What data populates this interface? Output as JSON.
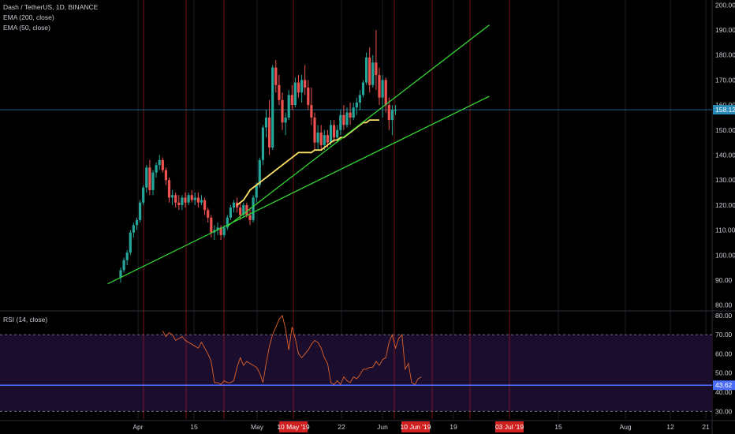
{
  "header": {
    "symbol_line": "Dash / TetherUS, 1D, BINANCE",
    "indicators": [
      "EMA (200, close)",
      "EMA (50, close)"
    ]
  },
  "rsi_pane": {
    "label": "RSI (14, close)"
  },
  "colors": {
    "background": "#000000",
    "up_candle": "#26a69a",
    "down_candle": "#ef5350",
    "trendline": "#35d335",
    "ema50": "#ffe066",
    "vertical_markers": "#b02020",
    "price_line": "#2a8bb8",
    "rsi_line": "#e0632a",
    "rsi_band_fill": "#1a0d2e",
    "rsi_highlight_line": "#4a6cf7"
  },
  "chart_data": [
    {
      "type": "candlestick",
      "title": "Dash / TetherUS, 1D, BINANCE",
      "x_tick_labels": [
        "Apr",
        "15",
        "May",
        "22",
        "Jun",
        "19",
        "15",
        "Aug",
        "12",
        "21"
      ],
      "highlighted_dates": [
        "10 May '19",
        "10 Jun '19",
        "03 Jul '19"
      ],
      "y_ticks": [
        "200.00",
        "190.00",
        "180.00",
        "170.00",
        "160.00",
        "150.00",
        "140.00",
        "130.00",
        "120.00",
        "110.00",
        "100.00",
        "90.00",
        "80.00"
      ],
      "ylim": [
        78,
        202
      ],
      "last_price_label": "158.12",
      "last_price": 158.12,
      "candle_start_day": 0,
      "candles": [
        [
          91,
          95,
          89,
          94
        ],
        [
          94,
          99,
          93,
          98
        ],
        [
          98,
          102,
          96,
          101
        ],
        [
          101,
          110,
          100,
          109
        ],
        [
          109,
          113,
          107,
          112
        ],
        [
          112,
          115,
          110,
          114
        ],
        [
          114,
          122,
          113,
          121
        ],
        [
          121,
          128,
          120,
          127
        ],
        [
          127,
          136,
          125,
          135
        ],
        [
          135,
          138,
          124,
          126
        ],
        [
          126,
          134,
          124,
          133
        ],
        [
          133,
          137,
          131,
          136
        ],
        [
          136,
          140,
          134,
          138
        ],
        [
          138,
          139,
          133,
          134
        ],
        [
          134,
          135,
          128,
          130
        ],
        [
          130,
          131,
          121,
          123
        ],
        [
          123,
          126,
          120,
          124
        ],
        [
          124,
          125,
          119,
          121
        ],
        [
          121,
          124,
          118,
          120
        ],
        [
          120,
          124,
          118,
          123
        ],
        [
          123,
          125,
          119,
          121
        ],
        [
          121,
          125,
          120,
          124
        ],
        [
          124,
          126,
          121,
          122
        ],
        [
          122,
          125,
          120,
          123
        ],
        [
          123,
          125,
          119,
          121
        ],
        [
          121,
          124,
          120,
          122
        ],
        [
          122,
          123,
          116,
          118
        ],
        [
          118,
          119,
          113,
          115
        ],
        [
          115,
          116,
          107,
          109
        ],
        [
          109,
          112,
          106,
          110
        ],
        [
          110,
          113,
          108,
          111
        ],
        [
          111,
          112,
          106,
          108
        ],
        [
          108,
          112,
          107,
          111
        ],
        [
          111,
          116,
          110,
          115
        ],
        [
          115,
          120,
          114,
          119
        ],
        [
          119,
          122,
          117,
          121
        ],
        [
          121,
          123,
          117,
          119
        ],
        [
          119,
          121,
          114,
          116
        ],
        [
          116,
          121,
          115,
          120
        ],
        [
          120,
          121,
          115,
          116
        ],
        [
          116,
          119,
          112,
          114
        ],
        [
          114,
          124,
          113,
          123
        ],
        [
          123,
          129,
          121,
          128
        ],
        [
          128,
          139,
          127,
          138
        ],
        [
          138,
          152,
          136,
          151
        ],
        [
          151,
          158,
          147,
          155
        ],
        [
          155,
          162,
          140,
          143
        ],
        [
          143,
          176,
          142,
          175
        ],
        [
          175,
          178,
          165,
          168
        ],
        [
          168,
          172,
          160,
          162
        ],
        [
          162,
          165,
          150,
          153
        ],
        [
          153,
          157,
          148,
          155
        ],
        [
          155,
          166,
          154,
          164
        ],
        [
          164,
          168,
          158,
          160
        ],
        [
          160,
          171,
          159,
          169
        ],
        [
          169,
          172,
          163,
          165
        ],
        [
          165,
          172,
          161,
          170
        ],
        [
          170,
          176,
          164,
          167
        ],
        [
          167,
          170,
          158,
          160
        ],
        [
          160,
          167,
          152,
          155
        ],
        [
          155,
          157,
          142,
          145
        ],
        [
          145,
          152,
          142,
          149
        ],
        [
          149,
          152,
          142,
          144
        ],
        [
          144,
          150,
          142,
          148
        ],
        [
          148,
          150,
          143,
          145
        ],
        [
          145,
          154,
          144,
          152
        ],
        [
          152,
          154,
          145,
          147
        ],
        [
          147,
          152,
          145,
          150
        ],
        [
          150,
          158,
          148,
          156
        ],
        [
          156,
          160,
          150,
          152
        ],
        [
          152,
          159,
          151,
          157
        ],
        [
          157,
          161,
          152,
          155
        ],
        [
          155,
          161,
          154,
          159
        ],
        [
          159,
          163,
          156,
          161
        ],
        [
          161,
          166,
          158,
          164
        ],
        [
          164,
          170,
          163,
          169
        ],
        [
          169,
          181,
          168,
          179
        ],
        [
          179,
          183,
          165,
          168
        ],
        [
          168,
          180,
          167,
          177
        ],
        [
          177,
          190,
          166,
          172
        ],
        [
          172,
          175,
          160,
          163
        ],
        [
          163,
          172,
          155,
          170
        ],
        [
          170,
          171,
          157,
          160
        ],
        [
          160,
          163,
          150,
          154
        ],
        [
          154,
          160,
          148,
          158
        ],
        [
          158,
          160,
          156,
          158
        ]
      ],
      "series": [
        {
          "name": "EMA (50, close)",
          "start_day": 36,
          "values": [
            120,
            121,
            122,
            124,
            126,
            127,
            128,
            129,
            130,
            131,
            132,
            133,
            134,
            135,
            136,
            137,
            138,
            139,
            140,
            141,
            141,
            141,
            141,
            141,
            142,
            142,
            142,
            143,
            144,
            145,
            146,
            146,
            147,
            147,
            148,
            149,
            150,
            151,
            152,
            153,
            153,
            154,
            154,
            154,
            154
          ]
        }
      ],
      "trendlines": [
        {
          "from": {
            "day": -4,
            "price": 88.5
          },
          "to": {
            "day": 114,
            "price": 163.5
          }
        },
        {
          "from": {
            "day": 33,
            "price": 111.5
          },
          "to": {
            "day": 114,
            "price": 192
          }
        }
      ]
    },
    {
      "type": "line",
      "title": "RSI (14, close)",
      "y_ticks": [
        "80.00",
        "70.00",
        "60.00",
        "50.00",
        "40.00",
        "30.00"
      ],
      "ylim": [
        26,
        82
      ],
      "band": [
        30,
        70
      ],
      "highlight_level": 43.62,
      "last_value_label": "43.62",
      "series": [
        {
          "name": "RSI (14, close)",
          "start_day": 13,
          "values": [
            72,
            69,
            71,
            70,
            67,
            68,
            69,
            67,
            66,
            65,
            64,
            63,
            66,
            63,
            60,
            56,
            45,
            45,
            44,
            46,
            45,
            45,
            46,
            53,
            58,
            54,
            56,
            55,
            54,
            53,
            50,
            45,
            55,
            64,
            70,
            74,
            78,
            80,
            73,
            62,
            74,
            68,
            60,
            58,
            60,
            62,
            65,
            67,
            66,
            63,
            58,
            55,
            45,
            44,
            46,
            44,
            48,
            46,
            45,
            48,
            47,
            49,
            52,
            52,
            53,
            53,
            56,
            54,
            57,
            58,
            66,
            70,
            63,
            68,
            70,
            52,
            55,
            45,
            44,
            47,
            48
          ]
        }
      ]
    }
  ]
}
